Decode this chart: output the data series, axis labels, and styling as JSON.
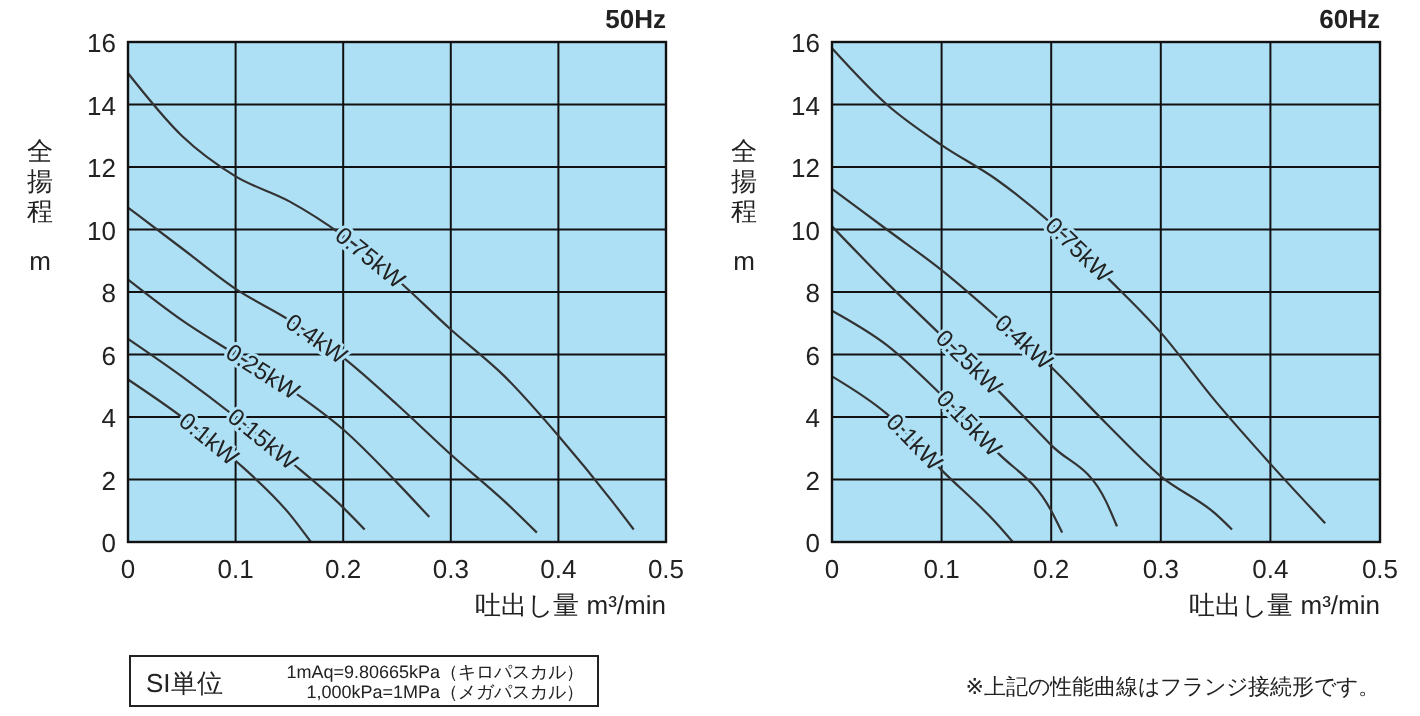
{
  "chart_data": [
    {
      "type": "line",
      "title": "50Hz",
      "xlabel": "吐出し量 m³/min",
      "ylabel": "全揚程 m",
      "xlim": [
        0,
        0.5
      ],
      "xticks": [
        0,
        0.1,
        0.2,
        0.3,
        0.4,
        0.5
      ],
      "ylim": [
        0,
        16
      ],
      "yticks": [
        0,
        2,
        4,
        6,
        8,
        10,
        12,
        14,
        16
      ],
      "grid": true,
      "marker": "none",
      "line_style": "solid",
      "annotations": [
        "SI単位",
        "1mAq=9.80665kPa（キロパスカル）",
        "1,000kPa=1MPa（メガパスカル）"
      ],
      "series": [
        {
          "name": "0.75kW",
          "color": "#333333",
          "x": [
            0,
            0.05,
            0.1,
            0.15,
            0.2,
            0.25,
            0.3,
            0.35,
            0.4,
            0.45,
            0.47
          ],
          "values": [
            15,
            13,
            11.7,
            10.9,
            9.8,
            8.4,
            6.8,
            5.3,
            3.4,
            1.3,
            0.4
          ]
        },
        {
          "name": "0.4kW",
          "color": "#333333",
          "x": [
            0,
            0.05,
            0.1,
            0.15,
            0.2,
            0.25,
            0.3,
            0.35,
            0.38
          ],
          "values": [
            10.7,
            9.4,
            8.1,
            7.1,
            5.9,
            4.4,
            2.8,
            1.3,
            0.3
          ]
        },
        {
          "name": "0.25kW",
          "color": "#333333",
          "x": [
            0,
            0.05,
            0.1,
            0.15,
            0.2,
            0.25,
            0.28
          ],
          "values": [
            8.4,
            7.1,
            6,
            4.9,
            3.6,
            1.9,
            0.8
          ]
        },
        {
          "name": "0.15kW",
          "color": "#333333",
          "x": [
            0,
            0.05,
            0.1,
            0.15,
            0.2,
            0.22
          ],
          "values": [
            6.5,
            5.3,
            4,
            2.6,
            1.1,
            0.4
          ]
        },
        {
          "name": "0.1kW",
          "color": "#333333",
          "x": [
            0,
            0.05,
            0.1,
            0.15,
            0.17
          ],
          "values": [
            5.2,
            4,
            2.6,
            0.9,
            0
          ]
        }
      ]
    },
    {
      "type": "line",
      "title": "60Hz",
      "xlabel": "吐出し量 m³/min",
      "ylabel": "全揚程 m",
      "xlim": [
        0,
        0.5
      ],
      "xticks": [
        0,
        0.1,
        0.2,
        0.3,
        0.4,
        0.5
      ],
      "ylim": [
        0,
        16
      ],
      "yticks": [
        0,
        2,
        4,
        6,
        8,
        10,
        12,
        14,
        16
      ],
      "grid": true,
      "marker": "none",
      "line_style": "solid",
      "annotations": [
        "※上記の性能曲線はフランジ接続形です。"
      ],
      "series": [
        {
          "name": "0.75kW",
          "color": "#333333",
          "x": [
            0,
            0.05,
            0.1,
            0.15,
            0.2,
            0.25,
            0.3,
            0.35,
            0.4,
            0.45
          ],
          "values": [
            15.8,
            14,
            12.7,
            11.6,
            10.2,
            8.5,
            6.7,
            4.5,
            2.5,
            0.6
          ]
        },
        {
          "name": "0.4kW",
          "color": "#333333",
          "x": [
            0,
            0.05,
            0.1,
            0.15,
            0.2,
            0.25,
            0.3,
            0.35,
            0.365
          ],
          "values": [
            11.3,
            10,
            8.7,
            7.2,
            5.6,
            3.8,
            2.1,
            0.9,
            0.4
          ]
        },
        {
          "name": "0.25kW",
          "color": "#333333",
          "x": [
            0,
            0.05,
            0.1,
            0.15,
            0.2,
            0.25,
            0.26
          ],
          "values": [
            10.1,
            8.3,
            6.6,
            4.9,
            3.1,
            1.3,
            0.5
          ]
        },
        {
          "name": "0.15kW",
          "color": "#333333",
          "x": [
            0,
            0.05,
            0.1,
            0.15,
            0.2,
            0.21
          ],
          "values": [
            7.4,
            6.3,
            4.7,
            2.9,
            1,
            0.3
          ]
        },
        {
          "name": "0.1kW",
          "color": "#333333",
          "x": [
            0,
            0.05,
            0.1,
            0.15,
            0.165
          ],
          "values": [
            5.3,
            4.1,
            2.3,
            0.6,
            0
          ]
        }
      ]
    }
  ]
}
